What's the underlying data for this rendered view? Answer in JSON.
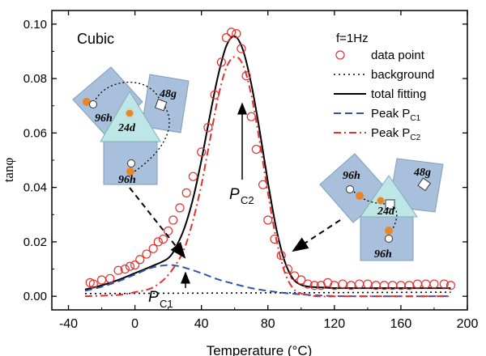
{
  "chart_data": {
    "type": "scatter",
    "title": "",
    "panel_label": "Cubic",
    "xlabel": "Temperature (°C)",
    "ylabel": "tanφ",
    "xlim": [
      -50,
      200
    ],
    "ylim": [
      -0.005,
      0.105
    ],
    "x_ticks": [
      -40,
      0,
      40,
      80,
      120,
      160,
      200
    ],
    "x_tick_labels": [
      "-40",
      "0",
      "40",
      "80",
      "120",
      "160",
      "200"
    ],
    "y_ticks": [
      0.0,
      0.02,
      0.04,
      0.06,
      0.08,
      0.1
    ],
    "y_tick_labels": [
      "0.00",
      "0.02",
      "0.04",
      "0.06",
      "0.08",
      "0.10"
    ],
    "legend": {
      "title": "f=1Hz",
      "position": "top-right",
      "entries": [
        {
          "label": "data point",
          "marker": "circle",
          "color": "#e0312f"
        },
        {
          "label": "background",
          "line": "dotted",
          "color": "#000000"
        },
        {
          "label": "total fitting",
          "line": "solid",
          "color": "#000000"
        },
        {
          "label": "Peak P",
          "subscript": "C1",
          "line": "dashed",
          "color": "#2e56a8"
        },
        {
          "label": "Peak P",
          "subscript": "C2",
          "line": "dashdot",
          "color": "#e0312f"
        }
      ]
    },
    "series": [
      {
        "name": "data point",
        "style": "markers",
        "x": [
          -27,
          -25,
          -20,
          -15,
          -10,
          -6,
          -3,
          0,
          3,
          7,
          11,
          14,
          17,
          20,
          23,
          27,
          31,
          35,
          40,
          44,
          48,
          52,
          55,
          58,
          61,
          64,
          67,
          70,
          73,
          77,
          80,
          84,
          88,
          92,
          96,
          100,
          104,
          108,
          112,
          116,
          120,
          125,
          130,
          135,
          140,
          145,
          150,
          155,
          160,
          165,
          170,
          175,
          180,
          186,
          190
        ],
        "y": [
          0.005,
          0.0045,
          0.006,
          0.0065,
          0.0095,
          0.01,
          0.011,
          0.0115,
          0.0135,
          0.0155,
          0.0175,
          0.02,
          0.021,
          0.024,
          0.028,
          0.0325,
          0.038,
          0.044,
          0.053,
          0.062,
          0.074,
          0.086,
          0.095,
          0.097,
          0.0965,
          0.091,
          0.081,
          0.066,
          0.054,
          0.041,
          0.028,
          0.021,
          0.015,
          0.01,
          0.0075,
          0.006,
          0.0045,
          0.004,
          0.004,
          0.005,
          0.004,
          0.0045,
          0.004,
          0.0045,
          0.0045,
          0.004,
          0.004,
          0.004,
          0.004,
          0.004,
          0.0045,
          0.0045,
          0.0045,
          0.0045,
          0.004
        ]
      },
      {
        "name": "background",
        "style": "dotted",
        "x": [
          -30,
          190
        ],
        "y": [
          0.001,
          0.0015
        ]
      },
      {
        "name": "total fitting",
        "style": "solid",
        "x": [
          -30,
          -20,
          -10,
          0,
          10,
          20,
          25,
          30,
          35,
          40,
          45,
          50,
          55,
          60,
          65,
          70,
          75,
          80,
          85,
          90,
          95,
          100,
          105,
          110,
          120,
          130,
          150,
          170,
          190
        ],
        "y": [
          0.0025,
          0.004,
          0.006,
          0.0085,
          0.011,
          0.014,
          0.0185,
          0.0255,
          0.036,
          0.05,
          0.066,
          0.081,
          0.092,
          0.0955,
          0.0905,
          0.078,
          0.061,
          0.042,
          0.025,
          0.013,
          0.0065,
          0.0042,
          0.0035,
          0.0033,
          0.003,
          0.003,
          0.003,
          0.003,
          0.003
        ]
      },
      {
        "name": "Peak PC1",
        "style": "dashed",
        "x": [
          -30,
          -20,
          -10,
          0,
          10,
          20,
          25,
          30,
          40,
          50,
          60,
          70,
          80,
          90,
          100,
          110,
          120,
          130,
          190
        ],
        "y": [
          0.002,
          0.0035,
          0.0055,
          0.008,
          0.0105,
          0.0115,
          0.0112,
          0.0105,
          0.0085,
          0.0062,
          0.0045,
          0.003,
          0.002,
          0.0012,
          0.0007,
          0.0003,
          0.0001,
          0.0,
          0.0
        ]
      },
      {
        "name": "Peak PC2",
        "style": "dashdot",
        "x": [
          -30,
          -10,
          0,
          10,
          18,
          25,
          30,
          35,
          40,
          45,
          50,
          55,
          60,
          65,
          70,
          75,
          80,
          85,
          90,
          95,
          100,
          110,
          130,
          190
        ],
        "y": [
          0.0,
          0.0005,
          0.0015,
          0.003,
          0.0065,
          0.012,
          0.018,
          0.028,
          0.041,
          0.057,
          0.073,
          0.084,
          0.088,
          0.085,
          0.074,
          0.057,
          0.038,
          0.021,
          0.009,
          0.003,
          0.001,
          0.0,
          0.0,
          0.0
        ]
      }
    ],
    "annotations": [
      {
        "text": "P",
        "subscript": "C2"
      },
      {
        "text": "P",
        "subscript": "C1"
      }
    ]
  },
  "insets": {
    "left": {
      "labels": [
        "48g",
        "24d",
        "96h",
        "96h"
      ]
    },
    "right": {
      "labels": [
        "96h",
        "48g",
        "24d",
        "96h"
      ]
    }
  }
}
